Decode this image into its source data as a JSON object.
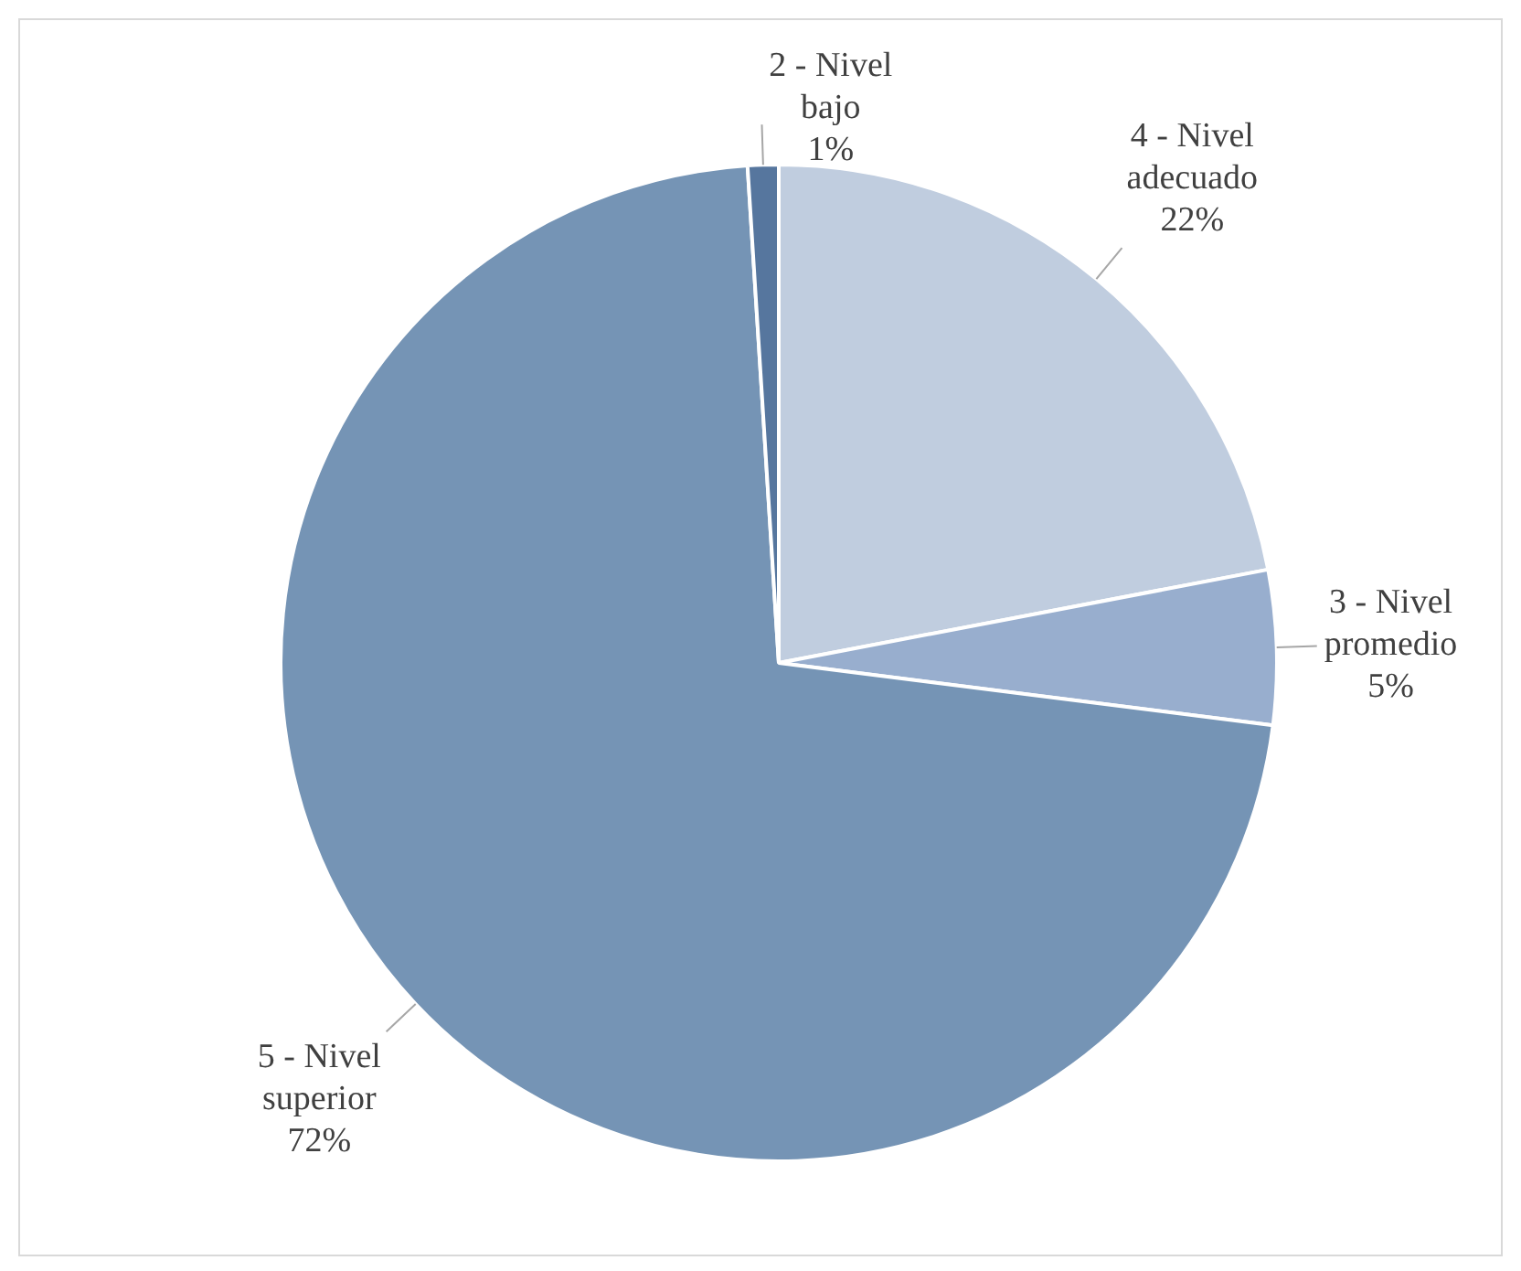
{
  "chart_data": {
    "type": "pie",
    "categories": [
      "4 - Nivel adecuado",
      "3 - Nivel promedio",
      "5 - Nivel superior",
      "2 - Nivel bajo"
    ],
    "values": [
      22,
      5,
      72,
      1
    ],
    "value_labels": [
      "22%",
      "5%",
      "72%",
      "1%"
    ],
    "colors": [
      "#c0cddf",
      "#98aece",
      "#7594b5",
      "#56769e"
    ],
    "legend": false
  }
}
